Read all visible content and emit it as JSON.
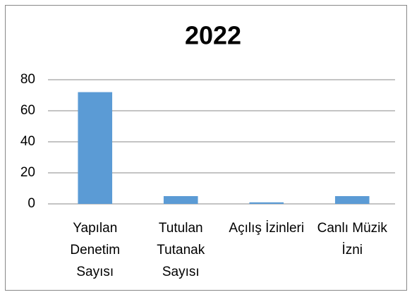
{
  "chart_data": {
    "type": "bar",
    "title": "2022",
    "categories": [
      "Yapılan Denetim Sayısı",
      "Tutulan Tutanak Sayısı",
      "Açılış İzinleri",
      "Canlı Müzik İzni"
    ],
    "values": [
      72,
      5,
      1,
      5
    ],
    "color": "#5b9bd5",
    "ylim": [
      0,
      80
    ],
    "yticks": [
      0,
      20,
      40,
      60,
      80
    ],
    "grid": true
  }
}
